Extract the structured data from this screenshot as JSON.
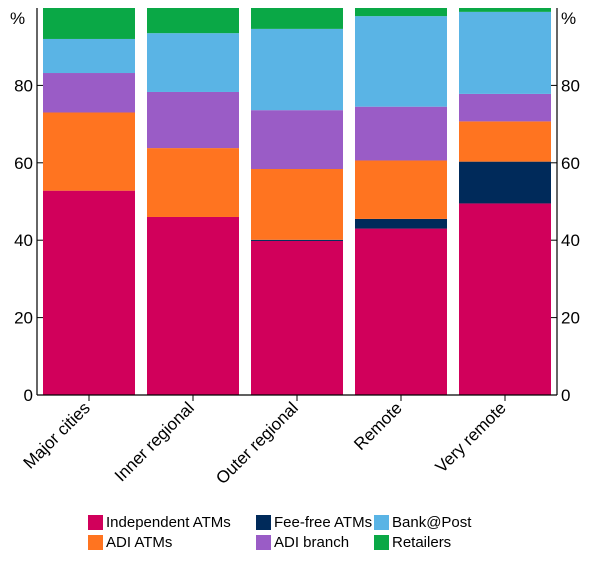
{
  "chart_data": {
    "type": "bar",
    "stacked": true,
    "categories": [
      "Major cities",
      "Inner regional",
      "Outer regional",
      "Remote",
      "Very remote"
    ],
    "y_unit": "%",
    "ylim": [
      0,
      100
    ],
    "yticks": [
      0,
      20,
      40,
      60,
      80
    ],
    "grid": false,
    "legend_position": "bottom",
    "series": [
      {
        "name": "Independent ATMs",
        "color": "#d1005b",
        "values": [
          52.8,
          46.0,
          39.8,
          43.0,
          49.5
        ]
      },
      {
        "name": "Fee-free ATMs",
        "color": "#002a5a",
        "values": [
          0.0,
          0.0,
          0.3,
          2.5,
          10.8
        ]
      },
      {
        "name": "ADI ATMs",
        "color": "#ff7420",
        "values": [
          20.2,
          17.8,
          18.3,
          15.1,
          10.4
        ]
      },
      {
        "name": "ADI branch",
        "color": "#9a5cc6",
        "values": [
          10.2,
          14.5,
          15.2,
          13.9,
          7.1
        ]
      },
      {
        "name": "Bank@Post",
        "color": "#5ab4e5",
        "values": [
          8.8,
          15.2,
          21.0,
          23.4,
          21.2
        ]
      },
      {
        "name": "Retailers",
        "color": "#0aa846",
        "values": [
          8.0,
          6.5,
          5.4,
          2.1,
          1.0
        ]
      }
    ]
  },
  "legend_items": [
    {
      "label": "Independent ATMs",
      "color": "#d1005b"
    },
    {
      "label": "Fee-free ATMs",
      "color": "#002a5a"
    },
    {
      "label": "Bank@Post",
      "color": "#5ab4e5"
    },
    {
      "label": "ADI ATMs",
      "color": "#ff7420"
    },
    {
      "label": "ADI branch",
      "color": "#9a5cc6"
    },
    {
      "label": "Retailers",
      "color": "#0aa846"
    }
  ]
}
